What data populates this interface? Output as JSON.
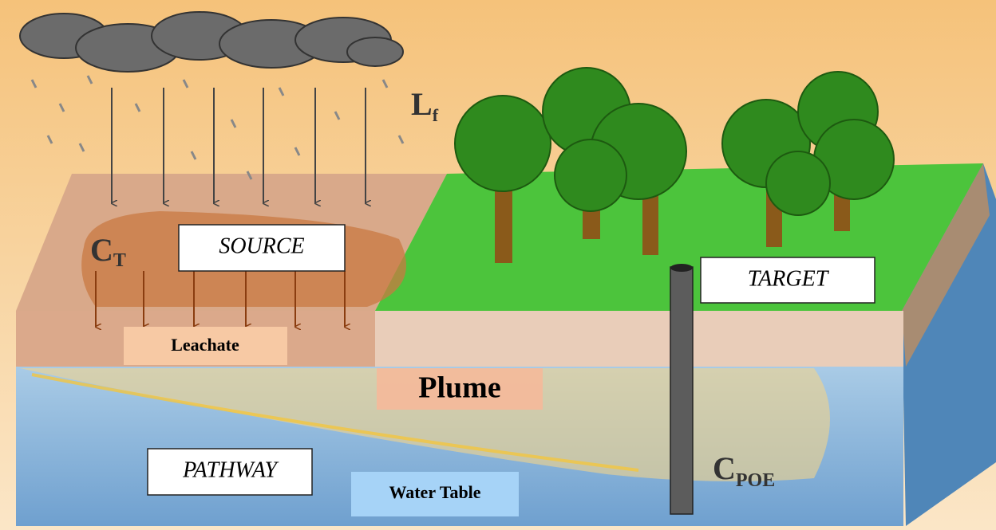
{
  "labels": {
    "lf": {
      "main": "L",
      "sub": "f"
    },
    "ct": {
      "main": "C",
      "sub": "T"
    },
    "source": "SOURCE",
    "target": "TARGET",
    "leachate": "Leachate",
    "plume": "Plume",
    "pathway": "PATHWAY",
    "water_table": "Water Table",
    "cpoe": {
      "main": "C",
      "sub": "POE"
    }
  }
}
